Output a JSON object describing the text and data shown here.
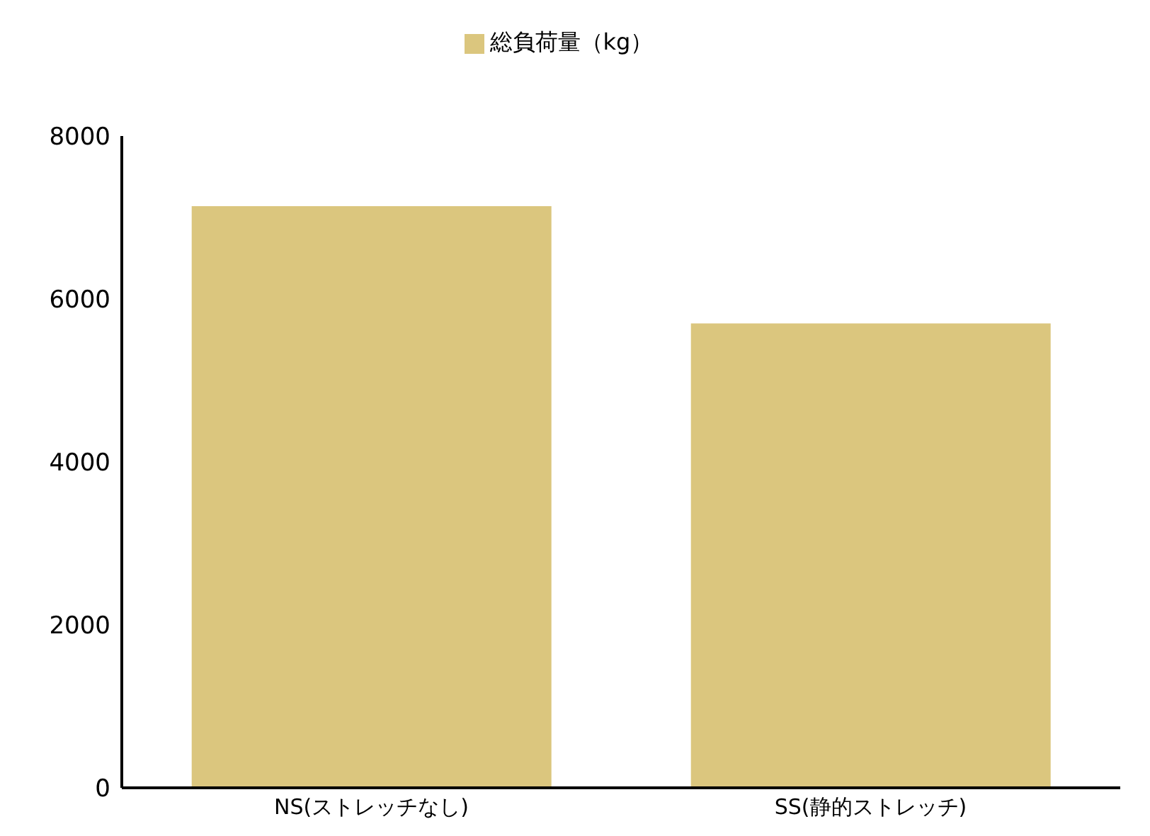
{
  "chart_data": {
    "type": "bar",
    "categories": [
      "NS(ストレッチなし)",
      "SS(静的ストレッチ)"
    ],
    "series": [
      {
        "name": "総負荷量（kg）",
        "color": "#dbc67e",
        "values": [
          7140,
          5700
        ]
      }
    ],
    "ylim": [
      0,
      8000
    ],
    "yticks": [
      0,
      2000,
      4000,
      6000,
      8000
    ],
    "grid": false,
    "legend": "top"
  }
}
